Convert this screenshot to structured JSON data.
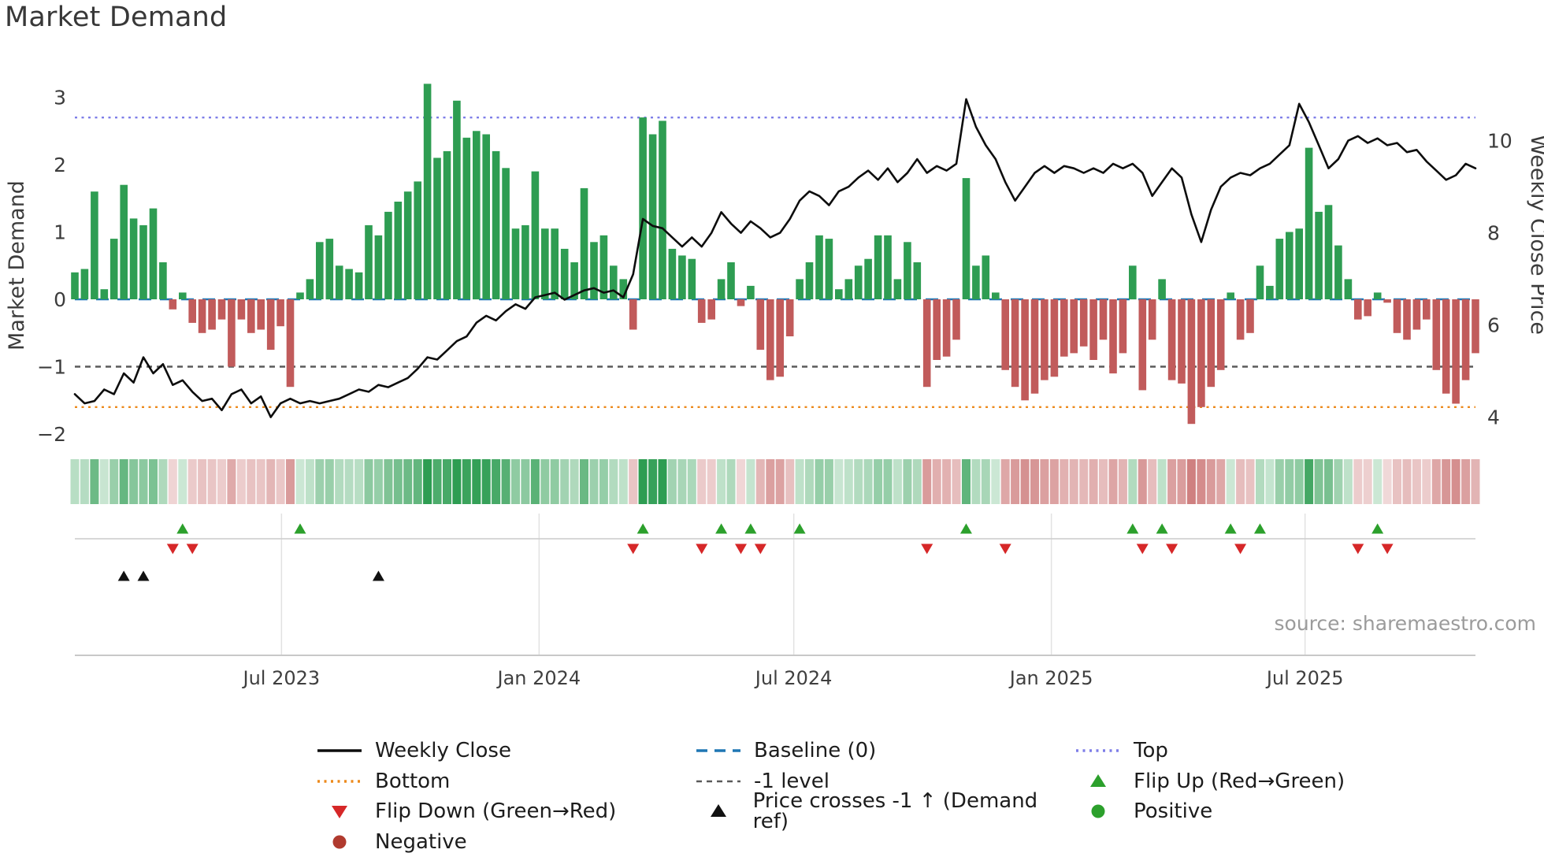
{
  "title": "Market Demand",
  "source": "source: sharemaestro.com",
  "chart_data": {
    "type": "mixed",
    "title": "Market Demand",
    "x": {
      "unit": "week-index",
      "count": 144,
      "tick_positions": [
        21.1,
        47.4,
        73.4,
        99.7,
        125.6
      ],
      "tick_labels": [
        "Jul 2023",
        "Jan 2024",
        "Jul 2024",
        "Jan 2025",
        "Jul 2025"
      ]
    },
    "left_axis": {
      "label": "Market Demand",
      "tick_values": [
        3,
        2,
        1,
        0,
        -1,
        -2
      ],
      "tick_labels": [
        "3",
        "2",
        "1",
        "0",
        "−1",
        "−2"
      ],
      "range": [
        -2.2,
        3.3
      ]
    },
    "right_axis": {
      "label": "Weekly Close Price",
      "tick_values": [
        10,
        8,
        6,
        4
      ],
      "tick_labels": [
        "10",
        "8",
        "6",
        "4"
      ],
      "range": [
        3.5,
        11.0
      ]
    },
    "series": [
      {
        "name": "Market Demand",
        "type": "bar",
        "axis": "left",
        "positive_color": "#2e9d52",
        "negative_color": "#c15b5b",
        "values": [
          0.4,
          0.45,
          1.6,
          0.15,
          0.9,
          1.7,
          1.2,
          1.1,
          1.35,
          0.55,
          -0.15,
          0.1,
          -0.35,
          -0.5,
          -0.45,
          -0.3,
          -1.0,
          -0.3,
          -0.5,
          -0.45,
          -0.75,
          -0.4,
          -1.3,
          0.1,
          0.3,
          0.85,
          0.9,
          0.5,
          0.45,
          0.4,
          1.1,
          0.95,
          1.3,
          1.45,
          1.6,
          1.75,
          3.2,
          2.1,
          2.2,
          2.95,
          2.4,
          2.5,
          2.45,
          2.2,
          1.95,
          1.05,
          1.1,
          1.9,
          1.05,
          1.05,
          0.75,
          0.55,
          1.65,
          0.85,
          0.95,
          0.5,
          0.3,
          -0.45,
          2.7,
          2.45,
          2.65,
          0.75,
          0.65,
          0.6,
          -0.35,
          -0.3,
          0.3,
          0.55,
          -0.1,
          0.2,
          -0.75,
          -1.2,
          -1.15,
          -0.55,
          0.3,
          0.55,
          0.95,
          0.9,
          0.15,
          0.3,
          0.5,
          0.6,
          0.95,
          0.95,
          0.3,
          0.85,
          0.55,
          -1.3,
          -0.9,
          -0.85,
          -0.6,
          1.8,
          0.5,
          0.65,
          0.1,
          -1.05,
          -1.3,
          -1.5,
          -1.4,
          -1.2,
          -1.15,
          -0.85,
          -0.8,
          -0.7,
          -0.9,
          -0.6,
          -1.1,
          -0.8,
          0.5,
          -1.35,
          -0.6,
          0.3,
          -1.2,
          -1.25,
          -1.85,
          -1.6,
          -1.3,
          -1.05,
          0.1,
          -0.6,
          -0.5,
          0.5,
          0.2,
          0.9,
          1.0,
          1.05,
          2.25,
          1.3,
          1.4,
          0.8,
          0.3,
          -0.3,
          -0.25,
          0.1,
          -0.05,
          -0.5,
          -0.6,
          -0.45,
          -0.3,
          -1.05,
          -1.4,
          -1.55,
          -1.2,
          -0.8
        ]
      },
      {
        "name": "Weekly Close",
        "type": "line",
        "axis": "right",
        "color": "#0d0d0d",
        "values": [
          4.5,
          4.3,
          4.35,
          4.6,
          4.5,
          4.95,
          4.75,
          5.3,
          4.95,
          5.15,
          4.7,
          4.8,
          4.55,
          4.35,
          4.4,
          4.15,
          4.5,
          4.6,
          4.3,
          4.45,
          4.0,
          4.3,
          4.4,
          4.3,
          4.35,
          4.3,
          4.35,
          4.4,
          4.5,
          4.6,
          4.55,
          4.7,
          4.65,
          4.75,
          4.85,
          5.05,
          5.3,
          5.25,
          5.45,
          5.65,
          5.75,
          6.05,
          6.2,
          6.1,
          6.3,
          6.45,
          6.35,
          6.6,
          6.65,
          6.7,
          6.55,
          6.65,
          6.75,
          6.8,
          6.7,
          6.75,
          6.6,
          7.1,
          8.3,
          8.15,
          8.1,
          7.9,
          7.7,
          7.9,
          7.7,
          8.0,
          8.45,
          8.2,
          8.0,
          8.25,
          8.1,
          7.9,
          8.0,
          8.3,
          8.7,
          8.9,
          8.8,
          8.6,
          8.9,
          9.0,
          9.2,
          9.35,
          9.15,
          9.4,
          9.1,
          9.3,
          9.6,
          9.3,
          9.45,
          9.35,
          9.5,
          10.9,
          10.3,
          9.9,
          9.6,
          9.1,
          8.7,
          9.0,
          9.3,
          9.45,
          9.3,
          9.45,
          9.4,
          9.3,
          9.4,
          9.3,
          9.5,
          9.4,
          9.5,
          9.3,
          8.8,
          9.1,
          9.4,
          9.2,
          8.4,
          7.8,
          8.5,
          9.0,
          9.2,
          9.3,
          9.25,
          9.4,
          9.5,
          9.7,
          9.9,
          10.8,
          10.4,
          9.9,
          9.4,
          9.6,
          10.0,
          10.1,
          9.95,
          10.05,
          9.9,
          9.95,
          9.75,
          9.8,
          9.55,
          9.35,
          9.15,
          9.25,
          9.5,
          9.4
        ]
      }
    ],
    "reference_lines": [
      {
        "name": "Top",
        "value": 2.7,
        "axis": "left",
        "dash_style": "dotted",
        "color": "#7e7ee8"
      },
      {
        "name": "Baseline (0)",
        "value": 0,
        "axis": "left",
        "dash_style": "dash-long",
        "color": "#1f77b4"
      },
      {
        "name": "-1 level",
        "value": -1,
        "axis": "left",
        "dash_style": "dash-short",
        "color": "#5a5a5a"
      },
      {
        "name": "Bottom",
        "value": -1.6,
        "axis": "left",
        "dash_style": "dotted",
        "color": "#ec8a1c"
      }
    ],
    "heatmap_strip": {
      "description": "Weekly strip derived from Market Demand values: green = positive, red = negative, darker = larger magnitude"
    },
    "markers": {
      "flip_up": {
        "label": "Flip Up (Red→Green)",
        "color": "#2ca02c",
        "weeks": [
          11,
          23,
          58,
          66,
          69,
          74,
          91,
          108,
          111,
          118,
          121,
          133
        ]
      },
      "flip_down": {
        "label": "Flip Down (Green→Red)",
        "color": "#d62728",
        "weeks": [
          10,
          12,
          57,
          64,
          68,
          70,
          87,
          95,
          109,
          112,
          119,
          131,
          134
        ]
      },
      "price_cross": {
        "label": "Price crosses -1 ↑ (Demand ref)",
        "color": "#111111",
        "weeks": [
          5,
          7,
          31
        ]
      }
    }
  },
  "legend": {
    "items": [
      {
        "label": "Weekly Close",
        "swatch": "line-solid",
        "color": "#0d0d0d"
      },
      {
        "label": "Baseline (0)",
        "swatch": "line-dashed",
        "color": "#1f77b4"
      },
      {
        "label": "Top",
        "swatch": "line-dotted",
        "color": "#7e7ee8"
      },
      {
        "label": "Bottom",
        "swatch": "line-dotted",
        "color": "#ec8a1c"
      },
      {
        "label": "-1 level",
        "swatch": "line-dash-short",
        "color": "#5a5a5a"
      },
      {
        "label": "Flip Up (Red→Green)",
        "swatch": "triangle-up",
        "color": "#2ca02c"
      },
      {
        "label": "Flip Down (Green→Red)",
        "swatch": "triangle-down",
        "color": "#d62728"
      },
      {
        "label": "Price crosses -1 ↑ (Demand ref)",
        "swatch": "triangle-up",
        "color": "#111111"
      },
      {
        "label": "Positive",
        "swatch": "circle",
        "color": "#2ca02c"
      },
      {
        "label": "Negative",
        "swatch": "circle",
        "color": "#b03a2e"
      }
    ]
  }
}
